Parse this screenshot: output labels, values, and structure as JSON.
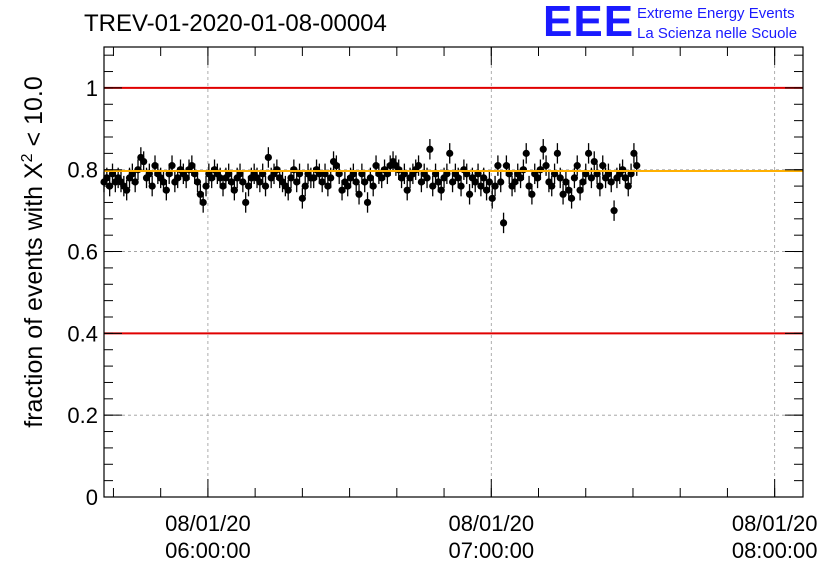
{
  "header": {
    "run_title": "TREV-01-2020-01-08-00004",
    "logo_mark": "EEE",
    "logo_line1": "Extreme Energy Events",
    "logo_line2": "La Scienza nelle Scuole",
    "logo_color": "#1a1aff"
  },
  "chart_data": {
    "type": "scatter",
    "title": "TREV-01-2020-01-08-00004",
    "ylabel": "fraction of events with X² < 10.0",
    "ylabel_text": "fraction of events with X",
    "ylabel_sup": "2",
    "ylabel_tail": " < 10.0",
    "xlabel": "",
    "ylim": [
      0,
      1.1
    ],
    "xlim": [
      "2020-01-08 05:38:00",
      "2020-01-08 08:06:00"
    ],
    "yticks": [
      "0",
      "0.2",
      "0.4",
      "0.6",
      "0.8",
      "1"
    ],
    "xticks": [
      {
        "date": "08/01/20",
        "time": "06:00:00"
      },
      {
        "date": "08/01/20",
        "time": "07:00:00"
      },
      {
        "date": "08/01/20",
        "time": "08:00:00"
      }
    ],
    "grid": true,
    "reference_lines": [
      {
        "value": 1.0,
        "color": "#e00000"
      },
      {
        "value": 0.4,
        "color": "#e00000"
      }
    ],
    "mean_line": {
      "value": 0.797,
      "color": "#ffb000"
    },
    "marker_color": "#000000",
    "error_bar": 0.025,
    "series": [
      {
        "x_start": "2020-01-08 05:38:00",
        "x_step_minutes": 0.6,
        "y": [
          0.77,
          0.78,
          0.76,
          0.79,
          0.77,
          0.78,
          0.77,
          0.76,
          0.75,
          0.78,
          0.79,
          0.77,
          0.8,
          0.83,
          0.82,
          0.78,
          0.79,
          0.76,
          0.81,
          0.79,
          0.78,
          0.77,
          0.75,
          0.79,
          0.81,
          0.77,
          0.78,
          0.8,
          0.79,
          0.78,
          0.8,
          0.81,
          0.79,
          0.77,
          0.74,
          0.72,
          0.76,
          0.79,
          0.78,
          0.8,
          0.79,
          0.78,
          0.76,
          0.78,
          0.79,
          0.77,
          0.75,
          0.78,
          0.79,
          0.77,
          0.72,
          0.76,
          0.78,
          0.79,
          0.78,
          0.77,
          0.79,
          0.76,
          0.83,
          0.78,
          0.79,
          0.8,
          0.78,
          0.77,
          0.76,
          0.75,
          0.78,
          0.8,
          0.77,
          0.79,
          0.73,
          0.76,
          0.79,
          0.78,
          0.78,
          0.8,
          0.79,
          0.77,
          0.79,
          0.76,
          0.78,
          0.82,
          0.81,
          0.79,
          0.75,
          0.77,
          0.76,
          0.78,
          0.79,
          0.77,
          0.74,
          0.79,
          0.77,
          0.72,
          0.78,
          0.76,
          0.81,
          0.79,
          0.78,
          0.8,
          0.79,
          0.81,
          0.82,
          0.81,
          0.8,
          0.78,
          0.79,
          0.75,
          0.78,
          0.79,
          0.8,
          0.81,
          0.77,
          0.79,
          0.78,
          0.85,
          0.76,
          0.79,
          0.77,
          0.75,
          0.78,
          0.79,
          0.84,
          0.77,
          0.79,
          0.78,
          0.76,
          0.8,
          0.79,
          0.74,
          0.78,
          0.77,
          0.79,
          0.76,
          0.78,
          0.75,
          0.77,
          0.73,
          0.76,
          0.81,
          0.77,
          0.67,
          0.81,
          0.79,
          0.76,
          0.77,
          0.79,
          0.78,
          0.8,
          0.84,
          0.76,
          0.74,
          0.79,
          0.78,
          0.8,
          0.85,
          0.81,
          0.77,
          0.76,
          0.79,
          0.84,
          0.78,
          0.74,
          0.77,
          0.75,
          0.73,
          0.78,
          0.81,
          0.75,
          0.77,
          0.79,
          0.84,
          0.78,
          0.82,
          0.79,
          0.76,
          0.81,
          0.78,
          0.79,
          0.77,
          0.7,
          0.78,
          0.79,
          0.8,
          0.78,
          0.76,
          0.79,
          0.84,
          0.81
        ]
      }
    ]
  }
}
